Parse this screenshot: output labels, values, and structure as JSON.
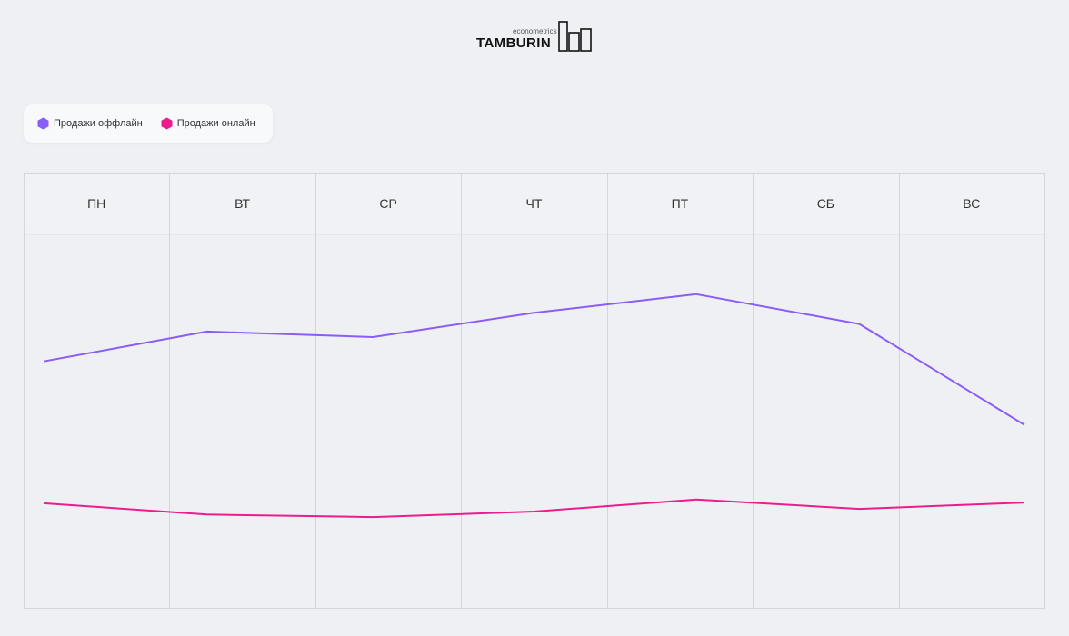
{
  "logo": {
    "small_text": "econometrics",
    "name": "TAMBURIN"
  },
  "legend": {
    "items": [
      {
        "label": "Продажи оффлайн",
        "color": "#8b5cf6"
      },
      {
        "label": "Продажи онлайн",
        "color": "#ec1c8c"
      }
    ]
  },
  "chart_data": {
    "type": "line",
    "categories": [
      "ПН",
      "ВТ",
      "СР",
      "ЧТ",
      "ПТ",
      "СБ",
      "ВС"
    ],
    "series": [
      {
        "name": "Продажи оффлайн",
        "color": "#8b5cf6",
        "values": [
          66,
          74,
          72.5,
          79,
          84,
          76,
          49
        ]
      },
      {
        "name": "Продажи онлайн",
        "color": "#ec1c8c",
        "values": [
          28,
          25,
          24.3,
          25.8,
          29,
          26.5,
          28.2
        ]
      }
    ],
    "ylim": [
      0,
      100
    ],
    "grid": true,
    "legend_position": "top-left"
  }
}
